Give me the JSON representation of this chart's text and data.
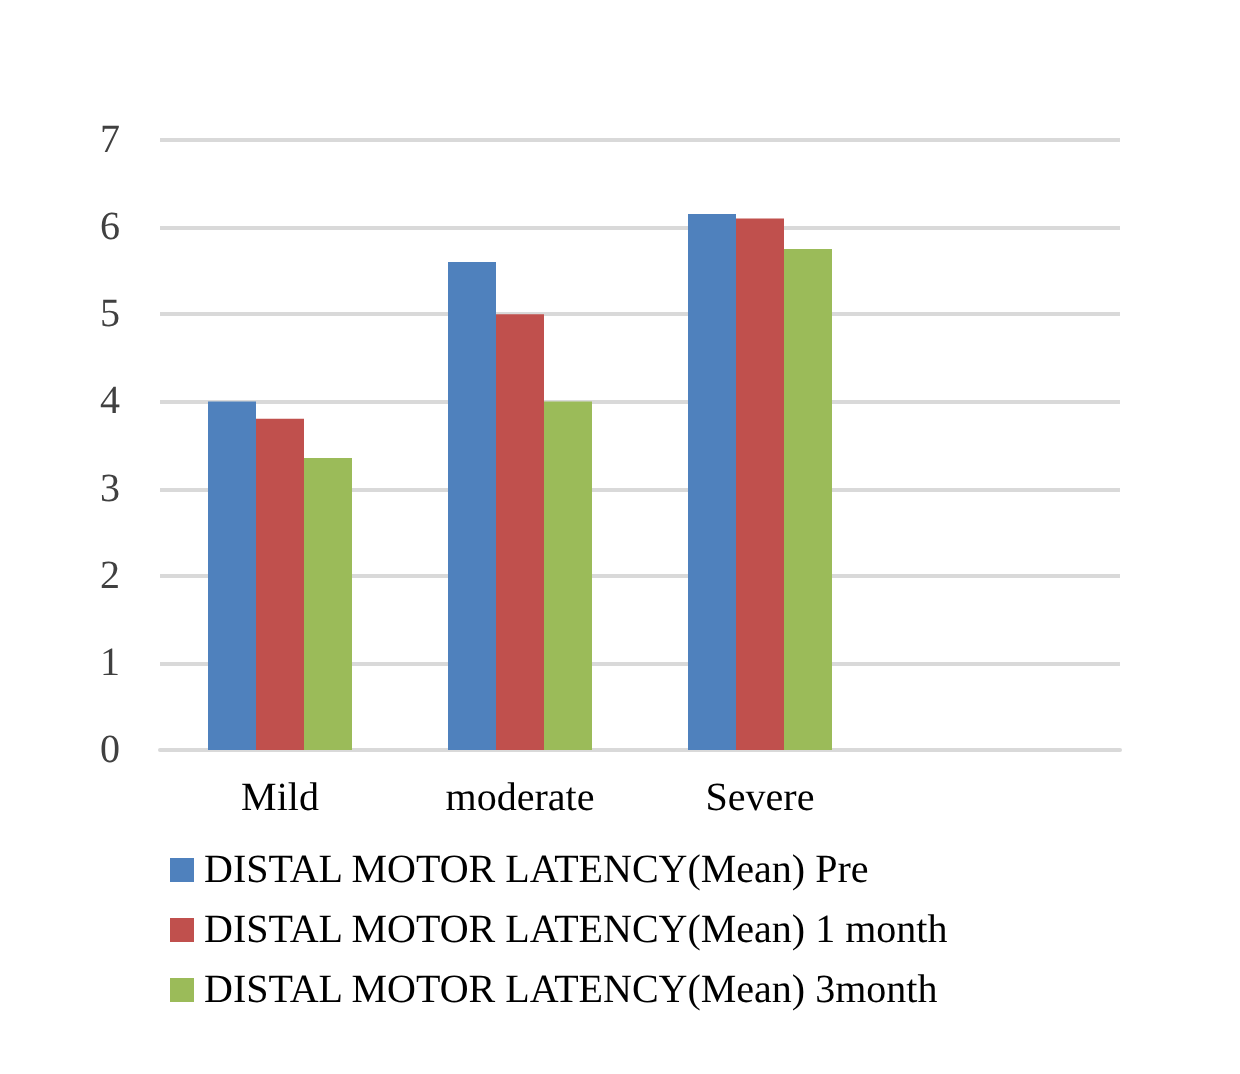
{
  "chart_data": {
    "type": "bar",
    "categories": [
      "Mild",
      "moderate",
      "Severe",
      null
    ],
    "series": [
      {
        "name": "DISTAL MOTOR LATENCY(Mean) Pre",
        "color": "#4f81bd",
        "values": [
          4.0,
          5.6,
          6.15,
          null
        ]
      },
      {
        "name": "DISTAL MOTOR LATENCY(Mean) 1 month",
        "color": "#c0504d",
        "values": [
          3.8,
          5.0,
          6.1,
          null
        ]
      },
      {
        "name": "DISTAL MOTOR LATENCY(Mean) 3month",
        "color": "#9bbb59",
        "values": [
          3.35,
          4.0,
          5.75,
          null
        ]
      }
    ],
    "ylim": [
      0,
      7
    ],
    "yticks": [
      0,
      1,
      2,
      3,
      4,
      5,
      6,
      7
    ],
    "grid": "y",
    "legend": "bottom"
  }
}
